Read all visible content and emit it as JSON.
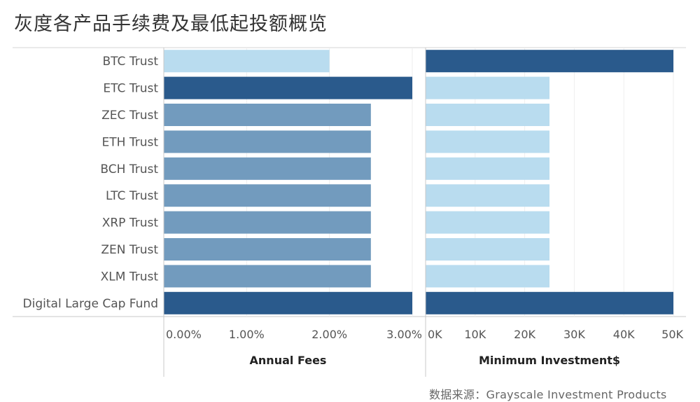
{
  "title": "灰度各产品手续费及最低起投额概览",
  "source": "数据来源：Grayscale Investment Products",
  "chart_data": {
    "type": "bar",
    "orientation": "horizontal",
    "categories": [
      "BTC Trust",
      "ETC Trust",
      "ZEC Trust",
      "ETH Trust",
      "BCH Trust",
      "LTC Trust",
      "XRP Trust",
      "ZEN Trust",
      "XLM Trust",
      "Digital Large Cap Fund"
    ],
    "panels": [
      {
        "xlabel": "Annual Fees",
        "xlim": [
          0,
          3.0
        ],
        "ticks": [
          0,
          1,
          2,
          3
        ],
        "tick_labels": [
          "0.00%",
          "1.00%",
          "2.00%",
          "3.00%"
        ],
        "values": [
          2.0,
          3.0,
          2.5,
          2.5,
          2.5,
          2.5,
          2.5,
          2.5,
          2.5,
          3.0
        ]
      },
      {
        "xlabel": "Minimum Investment$",
        "xlim": [
          0,
          50000
        ],
        "ticks": [
          0,
          10000,
          20000,
          30000,
          40000,
          50000
        ],
        "tick_labels": [
          "0K",
          "10K",
          "20K",
          "30K",
          "40K",
          "50K"
        ],
        "values": [
          50000,
          25000,
          25000,
          25000,
          25000,
          25000,
          25000,
          25000,
          25000,
          50000
        ]
      }
    ],
    "color_scale": {
      "low": "#b9dcef",
      "high": "#2a5a8c"
    },
    "grid": true
  }
}
